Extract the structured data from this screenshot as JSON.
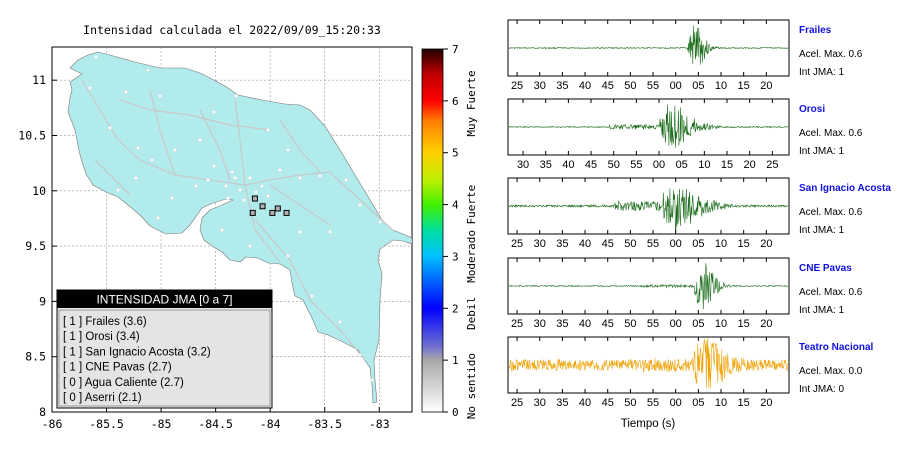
{
  "map": {
    "title": "Intensidad calculada el 2022/09/09_15:20:33",
    "land_color": "#b2ebec",
    "x_ticks": [
      "-86",
      "-85.5",
      "-85",
      "-84.5",
      "-84",
      "-83.5",
      "-83"
    ],
    "y_ticks": [
      "11",
      "10.5",
      "10",
      "9.5",
      "9",
      "8.5",
      "8"
    ],
    "legend_title": "INTENSIDAD JMA [0 a 7]",
    "legend_items": [
      "[ 1 ]  Frailes (3.6)",
      "[ 1 ]  Orosi (3.4)",
      "[ 1 ]  San Ignacio Acosta (3.2)",
      "[ 1 ]  CNE Pavas (2.7)",
      "[ 0 ]  Agua Caliente (2.7)",
      "[ 0 ]  Aserri (2.1)"
    ]
  },
  "colorbar": {
    "ticks": [
      "0",
      "1",
      "2",
      "3",
      "4",
      "5",
      "6",
      "7"
    ],
    "categories": [
      "No sentido",
      "Debil",
      "Moderado",
      "Fuerte",
      "Muy Fuerte"
    ]
  },
  "waveforms": {
    "xlabel": "Tiempo (s)",
    "panels": [
      {
        "station": "Frailes",
        "acel": "Acel. Max. 0.6",
        "int": "Int JMA: 1",
        "color": "#1a6b1a",
        "ticks": [
          "25",
          "30",
          "35",
          "40",
          "45",
          "50",
          "55",
          "00",
          "05",
          "10",
          "15",
          "20"
        ]
      },
      {
        "station": "Orosi",
        "acel": "Acel. Max. 0.6",
        "int": "Int JMA: 1",
        "color": "#1a6b1a",
        "ticks": [
          "30",
          "35",
          "40",
          "45",
          "50",
          "55",
          "00",
          "05",
          "10",
          "15",
          "20",
          "25"
        ]
      },
      {
        "station": "San Ignacio Acosta",
        "acel": "Acel. Max. 0.6",
        "int": "Int JMA: 1",
        "color": "#1a6b1a",
        "ticks": [
          "25",
          "30",
          "35",
          "40",
          "45",
          "50",
          "55",
          "00",
          "05",
          "10",
          "15",
          "20"
        ]
      },
      {
        "station": "CNE Pavas",
        "acel": "Acel. Max. 0.6",
        "int": "Int JMA: 1",
        "color": "#1a6b1a",
        "ticks": [
          "25",
          "30",
          "35",
          "40",
          "45",
          "50",
          "55",
          "00",
          "05",
          "10",
          "15",
          "20"
        ]
      },
      {
        "station": "Teatro Nacional",
        "acel": "Acel. Max. 0.0",
        "int": "Int JMA: 0",
        "color": "#f0a000",
        "ticks": [
          "25",
          "30",
          "35",
          "40",
          "45",
          "50",
          "55",
          "00",
          "05",
          "10",
          "15",
          "20"
        ]
      }
    ]
  },
  "chart_data": [
    {
      "type": "scatter",
      "title": "Intensidad calculada el 2022/09/09_15:20:33",
      "xlim": [
        -86,
        -82.7
      ],
      "ylim": [
        8,
        11.3
      ],
      "series": [
        {
          "name": "Frailes",
          "x": [
            -83.98
          ],
          "y": [
            9.8
          ],
          "intensity": 1
        },
        {
          "name": "Orosi",
          "x": [
            -83.85
          ],
          "y": [
            9.8
          ],
          "intensity": 1
        },
        {
          "name": "San Ignacio Acosta",
          "x": [
            -84.16
          ],
          "y": [
            9.8
          ],
          "intensity": 1
        },
        {
          "name": "CNE Pavas",
          "x": [
            -84.14
          ],
          "y": [
            9.93
          ],
          "intensity": 1
        },
        {
          "name": "Agua Caliente",
          "x": [
            -83.93
          ],
          "y": [
            9.84
          ],
          "intensity": 0
        },
        {
          "name": "Aserri",
          "x": [
            -84.07
          ],
          "y": [
            9.86
          ],
          "intensity": 0
        }
      ],
      "colorbar_range": [
        0,
        7
      ]
    },
    {
      "type": "line",
      "xlabel": "Tiempo (s)",
      "series": [
        {
          "name": "Frailes",
          "peak": 0.6
        },
        {
          "name": "Orosi",
          "peak": 0.6
        },
        {
          "name": "San Ignacio Acosta",
          "peak": 0.6
        },
        {
          "name": "CNE Pavas",
          "peak": 0.6
        },
        {
          "name": "Teatro Nacional",
          "peak": 0.0
        }
      ]
    }
  ]
}
